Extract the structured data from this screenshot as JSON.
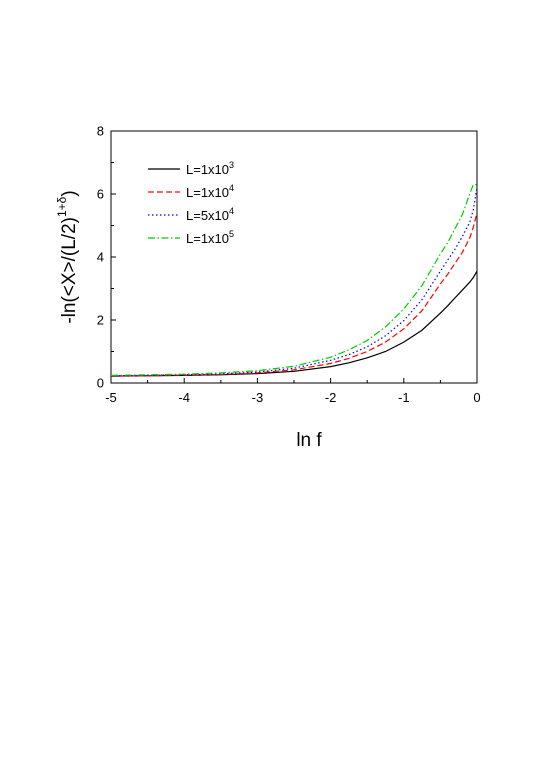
{
  "chart_data": {
    "type": "line",
    "title": "",
    "xlabel": "ln f",
    "ylabel": {
      "prefix": "-ln(<X>/(L/2)",
      "superscript": "1+δ",
      "suffix": ")"
    },
    "xlim": [
      -5,
      0
    ],
    "ylim": [
      0,
      8
    ],
    "xticks": [
      -5,
      -4,
      -3,
      -2,
      -1,
      0
    ],
    "yticks": [
      0,
      2,
      4,
      6,
      8
    ],
    "xtick_labels": [
      "-5",
      "-4",
      "-3",
      "-2",
      "-1",
      "0"
    ],
    "ytick_labels": [
      "0",
      "2",
      "4",
      "6",
      "8"
    ],
    "grid": false,
    "legend_position": "top-left",
    "series": [
      {
        "name": "L=1x10",
        "name_exp": "3",
        "color": "#000000",
        "dash": "solid",
        "x": [
          -5.0,
          -4.5,
          -4.0,
          -3.5,
          -3.0,
          -2.5,
          -2.0,
          -1.75,
          -1.5,
          -1.25,
          -1.0,
          -0.75,
          -0.5,
          -0.4,
          -0.3,
          -0.2,
          -0.1,
          -0.05,
          0.0
        ],
        "y": [
          0.22,
          0.23,
          0.24,
          0.26,
          0.3,
          0.37,
          0.52,
          0.64,
          0.8,
          1.0,
          1.3,
          1.68,
          2.22,
          2.45,
          2.7,
          2.95,
          3.2,
          3.35,
          3.55
        ]
      },
      {
        "name": "L=1x10",
        "name_exp": "4",
        "color": "#ff0000",
        "dash": "dashed",
        "x": [
          -5.0,
          -4.5,
          -4.0,
          -3.5,
          -3.0,
          -2.5,
          -2.0,
          -1.75,
          -1.5,
          -1.25,
          -1.0,
          -0.75,
          -0.5,
          -0.4,
          -0.3,
          -0.2,
          -0.1,
          -0.05,
          0.0
        ],
        "y": [
          0.22,
          0.23,
          0.25,
          0.27,
          0.32,
          0.42,
          0.62,
          0.78,
          1.0,
          1.3,
          1.72,
          2.3,
          3.15,
          3.45,
          3.8,
          4.15,
          4.6,
          4.95,
          5.4
        ]
      },
      {
        "name": "L=5x10",
        "name_exp": "4",
        "color": "#0000ff",
        "dash": "dotted",
        "x": [
          -5.0,
          -4.5,
          -4.0,
          -3.5,
          -3.0,
          -2.5,
          -2.0,
          -1.75,
          -1.5,
          -1.25,
          -1.0,
          -0.75,
          -0.5,
          -0.4,
          -0.3,
          -0.2,
          -0.1,
          -0.05,
          0.0
        ],
        "y": [
          0.23,
          0.24,
          0.26,
          0.29,
          0.35,
          0.47,
          0.72,
          0.9,
          1.15,
          1.5,
          1.98,
          2.65,
          3.55,
          3.9,
          4.25,
          4.65,
          5.1,
          5.5,
          6.2
        ]
      },
      {
        "name": "L=1x10",
        "name_exp": "5",
        "color": "#00cc00",
        "dash": "dashdot",
        "x": [
          -5.0,
          -4.5,
          -4.0,
          -3.5,
          -3.0,
          -2.5,
          -2.0,
          -1.75,
          -1.5,
          -1.25,
          -1.0,
          -0.75,
          -0.5,
          -0.4,
          -0.3,
          -0.2,
          -0.1,
          -0.05,
          0.0
        ],
        "y": [
          0.24,
          0.26,
          0.28,
          0.32,
          0.39,
          0.53,
          0.82,
          1.05,
          1.35,
          1.78,
          2.35,
          3.1,
          4.1,
          4.45,
          4.9,
          5.35,
          6.0,
          6.3,
          6.3
        ]
      }
    ]
  }
}
